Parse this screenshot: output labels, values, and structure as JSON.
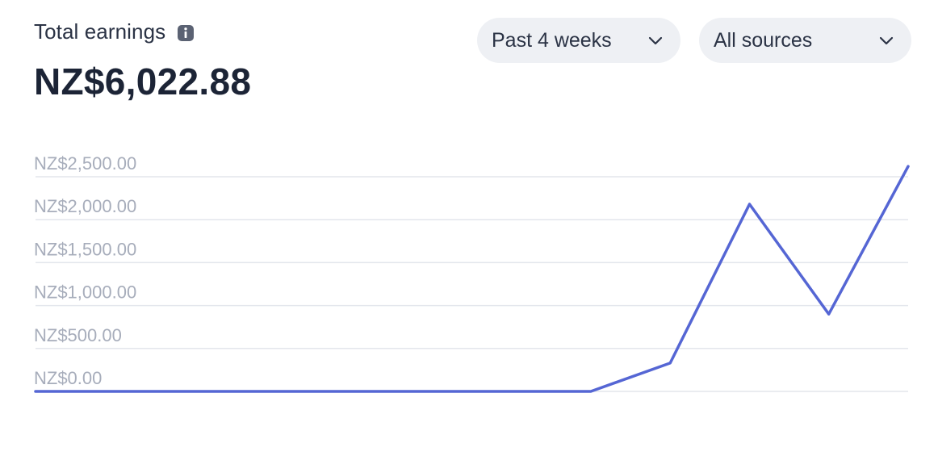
{
  "header": {
    "title": "Total earnings",
    "total": "NZ$6,022.88",
    "info_icon": "info-icon"
  },
  "filters": {
    "period": {
      "selected": "Past 4 weeks",
      "icon": "chevron-down-icon"
    },
    "source": {
      "selected": "All sources",
      "icon": "chevron-down-icon"
    }
  },
  "colors": {
    "line": "#5566d4",
    "grid": "#e3e6ec",
    "tick_text": "#a7adbb",
    "pill_bg": "#eef0f4"
  },
  "chart_data": {
    "type": "line",
    "title": "",
    "xlabel": "",
    "ylabel": "",
    "ylim": [
      0,
      2500
    ],
    "yticks": [
      2500,
      2000,
      1500,
      1000,
      500,
      0
    ],
    "ytick_labels": [
      "NZ$2,500.00",
      "NZ$2,000.00",
      "NZ$1,500.00",
      "NZ$1,000.00",
      "NZ$500.00",
      "NZ$0.00"
    ],
    "grid": true,
    "legend": "none",
    "x": [
      1,
      2,
      3,
      4,
      5,
      6,
      7,
      8,
      9,
      10,
      11,
      12
    ],
    "series": [
      {
        "values": [
          0,
          0,
          0,
          0,
          0,
          0,
          0,
          0,
          330,
          2180,
          900,
          2620
        ]
      }
    ]
  }
}
